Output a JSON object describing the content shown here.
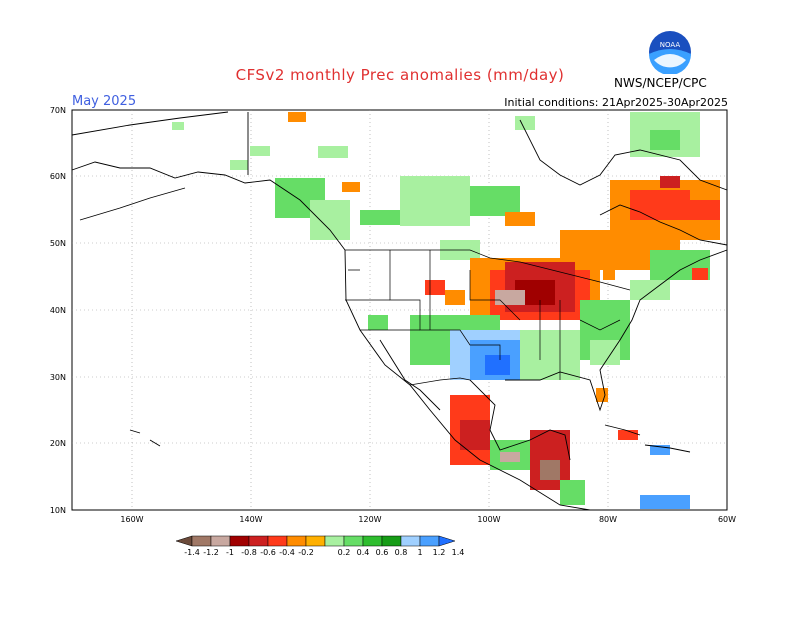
{
  "header": {
    "title": "CFSv2 monthly Prec anomalies (mm/day)",
    "month": "May 2025",
    "initial_conditions": "Initial conditions: 21Apr2025-30Apr2025",
    "agency": "NWS/NCEP/CPC",
    "logo_text": "NOAA"
  },
  "axes": {
    "lat_ticks": [
      "70N",
      "60N",
      "50N",
      "40N",
      "30N",
      "20N",
      "10N"
    ],
    "lon_ticks": [
      "160W",
      "140W",
      "120W",
      "100W",
      "80W",
      "60W"
    ]
  },
  "colorbar": {
    "labels": [
      "-1.4",
      "-1.2",
      "-1",
      "-0.8",
      "-0.6",
      "-0.4",
      "-0.2",
      "0.2",
      "0.4",
      "0.6",
      "0.8",
      "1",
      "1.2",
      "1.4"
    ],
    "colors": [
      "#6b4a3a",
      "#a07866",
      "#c8a8a0",
      "#a00000",
      "#cc2020",
      "#ff3a1a",
      "#ff8c00",
      "#ffb000",
      "#a8f0a0",
      "#66dd66",
      "#2ebd2e",
      "#169c16",
      "#a0d0ff",
      "#4aa0ff",
      "#2070ff"
    ]
  },
  "map_data": {
    "units": "mm/day",
    "lat_range": [
      10,
      70
    ],
    "lon_range": [
      -170,
      -60
    ],
    "regions": [
      {
        "name": "Great Lakes / Upper Midwest",
        "anomaly": -1.0
      },
      {
        "name": "Eastern Canada / Quebec",
        "anomaly": -0.5
      },
      {
        "name": "Texas / Southern Plains",
        "anomaly": 1.2
      },
      {
        "name": "Southern Mexico",
        "anomaly": -1.0
      },
      {
        "name": "Western Canada",
        "anomaly": 0.4
      },
      {
        "name": "Southeast US",
        "anomaly": 0.4
      }
    ]
  }
}
